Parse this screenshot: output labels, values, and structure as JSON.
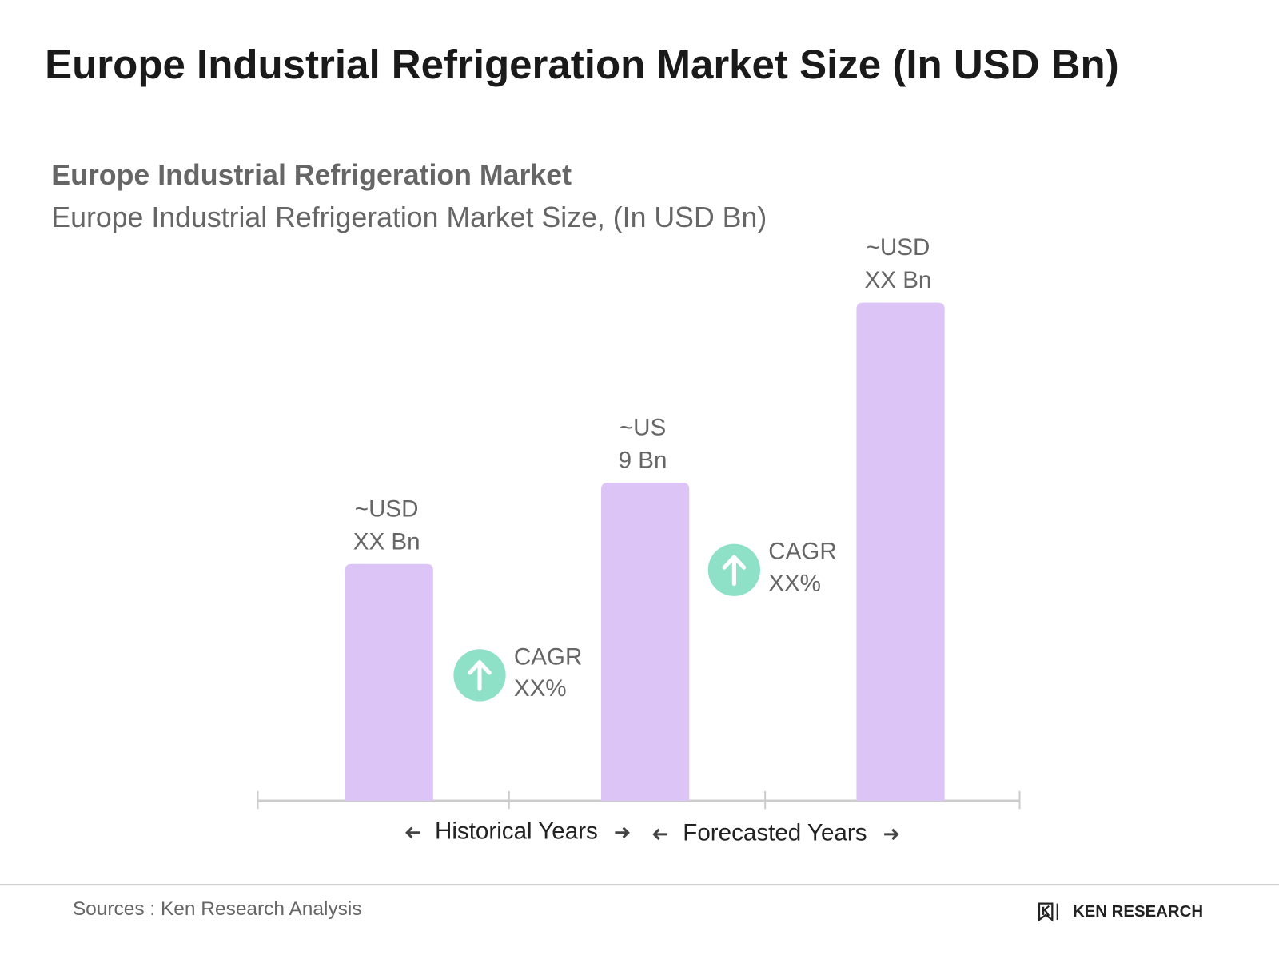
{
  "chart_data": {
    "type": "bar",
    "title": "Europe Industrial Refrigeration Market Size (In USD Bn)",
    "heading": "Europe Industrial Refrigeration Market",
    "subtitle": "Europe Industrial Refrigeration Market Size, (In USD Bn)",
    "categories": [
      null,
      null,
      null
    ],
    "values": [
      6.7,
      9,
      14.1
    ],
    "value_labels": [
      "~USD XX Bn",
      "~US 9 Bn",
      "~USD XX Bn"
    ],
    "color": "#dcc4f6",
    "annotations": [
      {
        "label": "CAGR",
        "value": "XX%"
      },
      {
        "label": "CAGR",
        "value": "XX%"
      }
    ],
    "annotation_color": "#8ee0c6",
    "periods": [
      "Historical Years",
      "Forecasted Years"
    ]
  },
  "source": "Sources : Ken Research Analysis",
  "brand": "KEN RESEARCH"
}
